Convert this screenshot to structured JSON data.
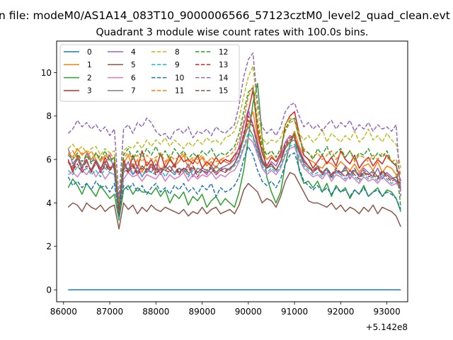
{
  "chart_data": {
    "type": "line",
    "suptitle": "n file: modeM0/AS1A14_083T10_9000006566_57123cztM0_level2_quad_clean.evt",
    "title": "Quadrant 3 module wise count rates with 100.0s bins.",
    "xlabel": "",
    "ylabel": "",
    "x_offset_label": "+5.142e8",
    "x_ticks": [
      86000,
      87000,
      88000,
      89000,
      90000,
      91000,
      92000,
      93000
    ],
    "y_ticks": [
      0,
      2,
      4,
      6,
      8,
      10
    ],
    "xlim": [
      85850,
      93450
    ],
    "ylim": [
      -0.55,
      11.45
    ],
    "x_start": 86100,
    "x_step": 100,
    "legend": {
      "placement": "top-left",
      "columns": 4
    },
    "colors": [
      "#1f77b4",
      "#ff7f0e",
      "#2ca02c",
      "#d62728",
      "#9467bd",
      "#8c564b",
      "#e377c2",
      "#7f7f7f",
      "#bcbd22",
      "#17becf",
      "#1f77b4",
      "#ff7f0e",
      "#2ca02c",
      "#d62728",
      "#9467bd",
      "#8c564b"
    ],
    "series": [
      {
        "name": "0",
        "dashed": false,
        "values": [
          0,
          0,
          0,
          0,
          0,
          0,
          0,
          0,
          0,
          0,
          0,
          0,
          0,
          0,
          0,
          0,
          0,
          0,
          0,
          0,
          0,
          0,
          0,
          0,
          0,
          0,
          0,
          0,
          0,
          0,
          0,
          0,
          0,
          0,
          0,
          0,
          0,
          0,
          0,
          0,
          0,
          0,
          0,
          0,
          0,
          0,
          0,
          0,
          0,
          0,
          0,
          0,
          0,
          0,
          0,
          0,
          0,
          0,
          0,
          0,
          0,
          0,
          0,
          0,
          0,
          0,
          0,
          0,
          0,
          0,
          0,
          0,
          0
        ]
      },
      {
        "name": "1",
        "dashed": false,
        "values": [
          6.3,
          6.1,
          6.5,
          6.2,
          6.4,
          6.0,
          6.3,
          5.9,
          6.2,
          6.0,
          6.1,
          3.6,
          5.8,
          6.2,
          5.6,
          6.0,
          5.4,
          5.9,
          5.7,
          6.0,
          5.5,
          5.8,
          6.1,
          5.7,
          5.9,
          6.2,
          5.6,
          6.0,
          5.8,
          6.1,
          5.7,
          5.9,
          5.6,
          6.0,
          5.9,
          5.8,
          6.2,
          6.3,
          6.9,
          7.6,
          8.2,
          7.0,
          6.4,
          6.0,
          6.2,
          5.9,
          6.1,
          6.6,
          6.8,
          7.3,
          6.6,
          6.2,
          6.0,
          5.9,
          5.7,
          5.6,
          5.9,
          5.8,
          5.6,
          5.9,
          5.7,
          5.5,
          5.8,
          5.4,
          5.7,
          5.8,
          5.5,
          5.9,
          5.4,
          5.7,
          5.6,
          5.3,
          4.6
        ]
      },
      {
        "name": "2",
        "dashed": false,
        "values": [
          4.7,
          5.1,
          4.8,
          4.4,
          4.9,
          4.6,
          4.3,
          4.8,
          4.5,
          4.2,
          4.4,
          3.2,
          4.6,
          4.8,
          4.4,
          4.7,
          4.5,
          4.5,
          4.4,
          4.7,
          4.3,
          4.6,
          4.0,
          4.4,
          4.2,
          4.5,
          3.9,
          4.3,
          4.1,
          4.4,
          3.8,
          4.1,
          4.3,
          3.9,
          4.2,
          4.0,
          3.8,
          4.5,
          5.5,
          7.0,
          8.6,
          9.5,
          7.0,
          5.2,
          4.5,
          4.0,
          4.5,
          5.8,
          6.7,
          7.2,
          5.5,
          4.9,
          5.0,
          4.7,
          5.0,
          4.5,
          4.9,
          4.3,
          4.8,
          4.5,
          4.7,
          4.2,
          4.6,
          4.4,
          4.8,
          4.3,
          4.5,
          4.7,
          4.3,
          4.6,
          4.5,
          4.2,
          3.6
        ]
      },
      {
        "name": "3",
        "dashed": false,
        "values": [
          6.0,
          5.4,
          6.2,
          5.7,
          6.0,
          5.4,
          5.9,
          5.5,
          6.1,
          5.6,
          5.8,
          3.8,
          6.0,
          5.4,
          6.2,
          5.6,
          6.4,
          5.7,
          6.0,
          5.5,
          6.3,
          5.6,
          6.0,
          5.7,
          6.2,
          5.9,
          6.0,
          5.8,
          6.2,
          5.6,
          5.9,
          5.7,
          6.1,
          5.8,
          6.0,
          5.9,
          6.2,
          6.5,
          7.0,
          8.2,
          9.2,
          7.3,
          6.3,
          5.7,
          6.1,
          5.9,
          6.3,
          7.6,
          8.0,
          8.2,
          7.2,
          6.2,
          6.0,
          5.6,
          5.9,
          6.2,
          5.8,
          6.1,
          5.7,
          6.4,
          6.0,
          5.8,
          6.2,
          5.6,
          5.9,
          6.1,
          5.7,
          6.0,
          5.8,
          6.2,
          5.9,
          5.7,
          5.0
        ]
      },
      {
        "name": "4",
        "dashed": false,
        "values": [
          6.5,
          5.8,
          6.1,
          5.5,
          6.3,
          5.9,
          6.0,
          5.4,
          5.8,
          6.2,
          5.5,
          3.5,
          5.5,
          5.9,
          5.3,
          5.7,
          5.2,
          5.6,
          5.4,
          5.8,
          5.3,
          5.7,
          5.5,
          5.3,
          5.6,
          5.4,
          5.8,
          5.2,
          5.6,
          5.5,
          5.3,
          5.7,
          5.4,
          5.6,
          5.7,
          5.8,
          6.0,
          6.6,
          7.6,
          8.3,
          7.6,
          6.8,
          6.0,
          5.6,
          5.9,
          5.7,
          6.2,
          6.8,
          7.1,
          7.0,
          6.5,
          6.0,
          5.7,
          5.4,
          5.7,
          5.3,
          5.6,
          5.2,
          5.5,
          5.3,
          5.7,
          5.1,
          5.5,
          5.3,
          5.6,
          5.4,
          5.2,
          5.6,
          5.1,
          5.4,
          5.2,
          5.0,
          4.6
        ]
      },
      {
        "name": "5",
        "dashed": false,
        "values": [
          3.8,
          4.0,
          3.9,
          3.6,
          4.0,
          3.8,
          3.7,
          3.9,
          3.6,
          3.8,
          3.9,
          2.8,
          4.0,
          3.7,
          3.9,
          3.5,
          3.8,
          3.6,
          3.9,
          3.7,
          3.6,
          3.8,
          3.7,
          3.6,
          3.5,
          3.7,
          3.4,
          3.6,
          3.5,
          3.8,
          3.5,
          3.7,
          3.8,
          3.5,
          3.6,
          3.7,
          3.5,
          3.9,
          4.6,
          4.9,
          4.7,
          4.5,
          4.0,
          4.2,
          4.1,
          3.8,
          4.3,
          5.0,
          5.4,
          5.3,
          4.9,
          4.5,
          4.1,
          4.0,
          4.0,
          3.9,
          3.8,
          4.0,
          3.7,
          3.9,
          3.6,
          3.8,
          3.7,
          3.5,
          3.8,
          3.6,
          3.9,
          3.5,
          3.8,
          3.7,
          3.6,
          3.4,
          2.9
        ]
      },
      {
        "name": "6",
        "dashed": false,
        "values": [
          5.3,
          5.4,
          5.2,
          5.5,
          5.3,
          5.6,
          5.2,
          5.5,
          5.1,
          5.4,
          5.3,
          3.4,
          5.1,
          5.4,
          5.2,
          5.3,
          5.0,
          5.3,
          5.2,
          5.1,
          5.4,
          5.0,
          5.3,
          5.1,
          5.2,
          5.4,
          5.0,
          5.3,
          5.1,
          5.3,
          5.2,
          5.4,
          5.1,
          5.3,
          5.2,
          5.4,
          5.5,
          5.9,
          6.5,
          7.0,
          6.8,
          6.2,
          5.6,
          5.3,
          5.5,
          5.3,
          5.6,
          6.2,
          6.5,
          6.6,
          6.0,
          5.6,
          5.4,
          5.2,
          5.3,
          5.1,
          5.4,
          5.0,
          5.3,
          5.2,
          5.0,
          5.3,
          5.1,
          4.9,
          5.2,
          5.0,
          5.1,
          4.9,
          5.2,
          5.0,
          4.8,
          4.9,
          4.7
        ]
      },
      {
        "name": "7",
        "dashed": false,
        "values": [
          5.9,
          5.6,
          6.1,
          5.7,
          5.9,
          5.5,
          6.0,
          5.6,
          5.8,
          5.5,
          5.9,
          3.6,
          5.7,
          5.5,
          5.8,
          5.4,
          5.7,
          5.5,
          5.8,
          5.4,
          5.6,
          5.5,
          5.7,
          5.4,
          5.6,
          5.5,
          5.3,
          5.6,
          5.4,
          5.6,
          5.5,
          5.4,
          5.7,
          5.5,
          5.6,
          5.5,
          5.8,
          6.2,
          7.0,
          7.5,
          7.1,
          6.4,
          5.8,
          5.6,
          5.7,
          5.5,
          5.9,
          6.5,
          6.8,
          6.9,
          6.3,
          5.8,
          5.6,
          5.5,
          5.6,
          5.4,
          5.6,
          5.3,
          5.5,
          5.4,
          5.6,
          5.3,
          5.5,
          5.2,
          5.4,
          5.3,
          5.5,
          5.2,
          5.4,
          5.3,
          5.1,
          5.2,
          4.8
        ]
      },
      {
        "name": "8",
        "dashed": true,
        "values": [
          6.5,
          6.7,
          6.4,
          6.6,
          6.3,
          6.5,
          6.6,
          6.2,
          6.5,
          6.3,
          6.4,
          3.9,
          6.4,
          6.6,
          6.5,
          6.8,
          6.5,
          6.9,
          6.6,
          6.9,
          6.7,
          7.0,
          6.6,
          6.9,
          6.7,
          6.5,
          6.8,
          6.6,
          6.9,
          6.7,
          7.0,
          6.8,
          6.9,
          6.7,
          7.0,
          7.1,
          7.3,
          7.9,
          8.9,
          9.8,
          10.3,
          8.3,
          7.0,
          6.7,
          6.9,
          6.8,
          7.0,
          7.6,
          7.9,
          7.8,
          7.2,
          6.9,
          7.1,
          6.8,
          7.0,
          7.4,
          6.8,
          7.2,
          7.0,
          6.8,
          7.1,
          6.9,
          7.3,
          6.8,
          7.0,
          7.4,
          6.9,
          7.1,
          6.8,
          7.2,
          6.9,
          6.7,
          5.6
        ]
      },
      {
        "name": "9",
        "dashed": true,
        "values": [
          5.5,
          5.3,
          5.7,
          5.4,
          5.6,
          5.3,
          5.5,
          5.2,
          5.6,
          5.4,
          5.3,
          3.3,
          5.4,
          5.6,
          5.3,
          5.5,
          5.2,
          5.5,
          5.4,
          5.3,
          5.6,
          5.2,
          5.5,
          5.3,
          5.4,
          5.6,
          5.2,
          5.5,
          5.3,
          5.5,
          5.4,
          5.6,
          5.3,
          5.5,
          5.4,
          5.6,
          5.7,
          6.0,
          6.6,
          7.2,
          7.0,
          6.3,
          5.7,
          5.4,
          5.6,
          5.4,
          5.7,
          6.3,
          6.6,
          6.7,
          6.1,
          5.7,
          5.5,
          5.3,
          5.4,
          5.2,
          5.5,
          5.1,
          5.4,
          5.3,
          5.1,
          5.4,
          5.2,
          5.0,
          5.3,
          5.1,
          5.2,
          5.0,
          5.3,
          5.1,
          4.9,
          5.0,
          4.8
        ]
      },
      {
        "name": "10",
        "dashed": true,
        "values": [
          5.2,
          4.8,
          5.0,
          4.7,
          4.9,
          4.6,
          5.0,
          4.7,
          4.8,
          4.5,
          4.9,
          3.4,
          4.8,
          4.6,
          4.9,
          4.5,
          4.8,
          4.4,
          4.7,
          4.9,
          4.5,
          4.7,
          4.4,
          4.8,
          4.6,
          4.9,
          4.5,
          4.7,
          4.4,
          4.8,
          4.6,
          4.9,
          4.3,
          4.7,
          4.5,
          4.6,
          4.8,
          5.2,
          6.0,
          6.6,
          6.2,
          5.5,
          5.0,
          4.8,
          5.0,
          4.7,
          5.1,
          5.8,
          6.2,
          6.3,
          5.6,
          5.0,
          4.8,
          4.6,
          4.8,
          4.5,
          4.7,
          4.4,
          4.7,
          4.5,
          4.6,
          4.3,
          4.6,
          4.4,
          4.7,
          4.3,
          4.5,
          4.6,
          4.3,
          4.5,
          4.4,
          4.2,
          3.7
        ]
      },
      {
        "name": "11",
        "dashed": true,
        "values": [
          6.2,
          6.4,
          6.0,
          6.3,
          6.1,
          6.4,
          6.0,
          6.2,
          5.9,
          6.3,
          6.0,
          3.7,
          6.1,
          6.3,
          6.0,
          6.2,
          5.9,
          6.2,
          6.0,
          6.1,
          6.3,
          5.9,
          6.2,
          6.0,
          6.1,
          6.3,
          5.9,
          6.1,
          6.0,
          6.2,
          5.8,
          6.1,
          5.9,
          6.0,
          6.1,
          6.2,
          6.4,
          6.9,
          7.8,
          8.9,
          9.4,
          7.8,
          6.7,
          6.2,
          6.4,
          6.1,
          6.5,
          7.3,
          7.7,
          7.8,
          7.0,
          6.5,
          6.3,
          6.1,
          6.3,
          6.0,
          6.2,
          6.4,
          6.0,
          6.3,
          6.1,
          6.4,
          5.9,
          6.2,
          6.1,
          5.9,
          6.2,
          6.0,
          6.3,
          6.1,
          5.9,
          6.0,
          5.3
        ]
      },
      {
        "name": "12",
        "dashed": true,
        "values": [
          6.2,
          6.0,
          6.3,
          5.9,
          6.2,
          5.8,
          6.3,
          6.0,
          6.4,
          5.9,
          6.1,
          3.7,
          6.2,
          6.5,
          6.0,
          6.4,
          6.1,
          6.5,
          6.2,
          6.6,
          6.1,
          6.4,
          6.0,
          6.5,
          6.2,
          6.4,
          6.0,
          6.3,
          6.1,
          6.4,
          6.2,
          6.5,
          6.1,
          6.3,
          6.2,
          6.4,
          6.6,
          7.2,
          8.2,
          9.1,
          9.3,
          7.6,
          6.5,
          6.2,
          6.4,
          6.1,
          6.5,
          7.4,
          7.8,
          7.9,
          7.0,
          6.4,
          6.3,
          6.0,
          6.5,
          6.2,
          6.6,
          6.1,
          6.3,
          6.5,
          6.1,
          6.4,
          6.0,
          6.3,
          6.2,
          6.5,
          6.0,
          6.3,
          6.1,
          6.4,
          5.9,
          5.8,
          3.8
        ]
      },
      {
        "name": "13",
        "dashed": true,
        "values": [
          5.9,
          5.5,
          5.8,
          5.4,
          5.7,
          5.5,
          5.9,
          5.4,
          5.7,
          5.5,
          5.8,
          3.5,
          5.6,
          5.4,
          5.7,
          5.3,
          5.6,
          5.4,
          5.7,
          5.3,
          5.6,
          5.5,
          5.4,
          5.7,
          5.3,
          5.6,
          5.4,
          5.7,
          5.2,
          5.5,
          5.4,
          5.6,
          5.3,
          5.5,
          5.4,
          5.6,
          5.8,
          6.3,
          7.2,
          8.0,
          7.6,
          6.6,
          5.9,
          5.6,
          5.8,
          5.5,
          5.9,
          6.7,
          7.0,
          7.1,
          6.4,
          5.9,
          5.7,
          5.4,
          5.6,
          5.3,
          5.6,
          5.2,
          5.5,
          5.4,
          5.2,
          5.5,
          5.3,
          5.1,
          5.4,
          5.2,
          5.3,
          5.1,
          5.4,
          5.2,
          5.0,
          5.1,
          4.7
        ]
      },
      {
        "name": "14",
        "dashed": true,
        "values": [
          7.2,
          7.4,
          7.8,
          7.5,
          7.7,
          7.4,
          7.6,
          7.3,
          7.5,
          7.1,
          7.4,
          4.2,
          7.4,
          7.6,
          7.2,
          7.7,
          7.5,
          7.9,
          7.7,
          7.3,
          7.1,
          7.2,
          6.9,
          7.3,
          7.4,
          7.2,
          7.5,
          7.0,
          7.3,
          7.2,
          7.4,
          7.1,
          7.5,
          7.3,
          7.2,
          7.4,
          7.6,
          8.5,
          9.8,
          10.6,
          10.9,
          8.6,
          7.5,
          7.2,
          7.4,
          7.1,
          7.5,
          8.2,
          8.5,
          8.6,
          8.0,
          7.5,
          7.7,
          7.4,
          7.6,
          7.3,
          7.6,
          7.8,
          7.4,
          7.7,
          7.5,
          7.8,
          7.3,
          7.6,
          7.4,
          7.7,
          7.3,
          7.6,
          7.4,
          7.5,
          7.3,
          7.6,
          4.3
        ]
      },
      {
        "name": "15",
        "dashed": true,
        "values": [
          5.9,
          5.7,
          6.0,
          5.6,
          5.9,
          5.5,
          5.8,
          5.6,
          5.9,
          5.5,
          5.7,
          3.6,
          5.8,
          5.5,
          5.8,
          5.4,
          5.7,
          5.5,
          5.8,
          5.6,
          5.4,
          5.7,
          5.5,
          5.8,
          5.4,
          5.6,
          5.5,
          5.7,
          5.4,
          5.6,
          5.5,
          5.7,
          5.4,
          5.6,
          5.5,
          5.6,
          5.8,
          6.3,
          7.1,
          7.8,
          7.5,
          6.6,
          5.9,
          5.6,
          5.8,
          5.5,
          5.9,
          6.6,
          6.9,
          7.0,
          6.4,
          5.9,
          5.7,
          5.5,
          5.7,
          5.4,
          5.6,
          5.3,
          5.6,
          5.4,
          5.5,
          5.3,
          5.6,
          5.2,
          5.5,
          5.3,
          5.4,
          5.2,
          5.5,
          5.3,
          5.1,
          5.2,
          4.9
        ]
      }
    ]
  }
}
